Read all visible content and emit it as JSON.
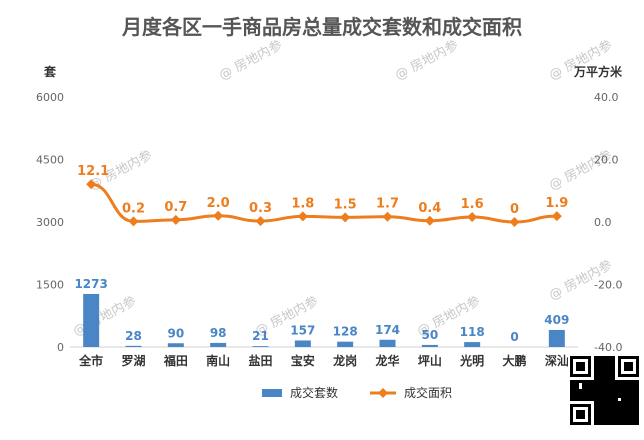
{
  "chart_data": {
    "type": "bar",
    "title": "月度各区一手商品房总量成交套数和成交面积",
    "left_unit": "套",
    "right_unit": "万平方米",
    "categories": [
      "全市",
      "罗湖",
      "福田",
      "南山",
      "盐田",
      "宝安",
      "龙岗",
      "龙华",
      "坪山",
      "光明",
      "大鹏",
      "深汕"
    ],
    "left_axis": {
      "min": 0,
      "max": 6000,
      "ticks": [
        "0",
        "1500",
        "3000",
        "4500",
        "6000"
      ],
      "tick_values": [
        0,
        1500,
        3000,
        4500,
        6000
      ]
    },
    "right_axis": {
      "min": -40,
      "max": 40,
      "ticks": [
        "-40.0",
        "-20.0",
        "0.0",
        "20.0",
        "40.0"
      ],
      "tick_values": [
        -40,
        -20,
        0,
        20,
        40
      ]
    },
    "series": [
      {
        "name": "成交套数",
        "type": "bar",
        "axis": "left",
        "color": "#4a86c5",
        "values": [
          1273,
          28,
          90,
          98,
          21,
          157,
          128,
          174,
          50,
          118,
          0,
          409
        ],
        "labels": [
          "1273",
          "28",
          "90",
          "98",
          "21",
          "157",
          "128",
          "174",
          "50",
          "118",
          "0",
          "409"
        ]
      },
      {
        "name": "成交面积",
        "type": "line",
        "axis": "right",
        "color": "#ee7d1e",
        "values": [
          12.1,
          0.2,
          0.7,
          2.0,
          0.3,
          1.8,
          1.5,
          1.7,
          0.4,
          1.6,
          0,
          1.9
        ],
        "labels": [
          "12.1",
          "0.2",
          "0.7",
          "2.0",
          "0.3",
          "1.8",
          "1.5",
          "1.7",
          "0.4",
          "1.6",
          "0",
          "1.9"
        ]
      }
    ],
    "grid": false,
    "legend_position": "bottom"
  },
  "watermark": "房地内参"
}
